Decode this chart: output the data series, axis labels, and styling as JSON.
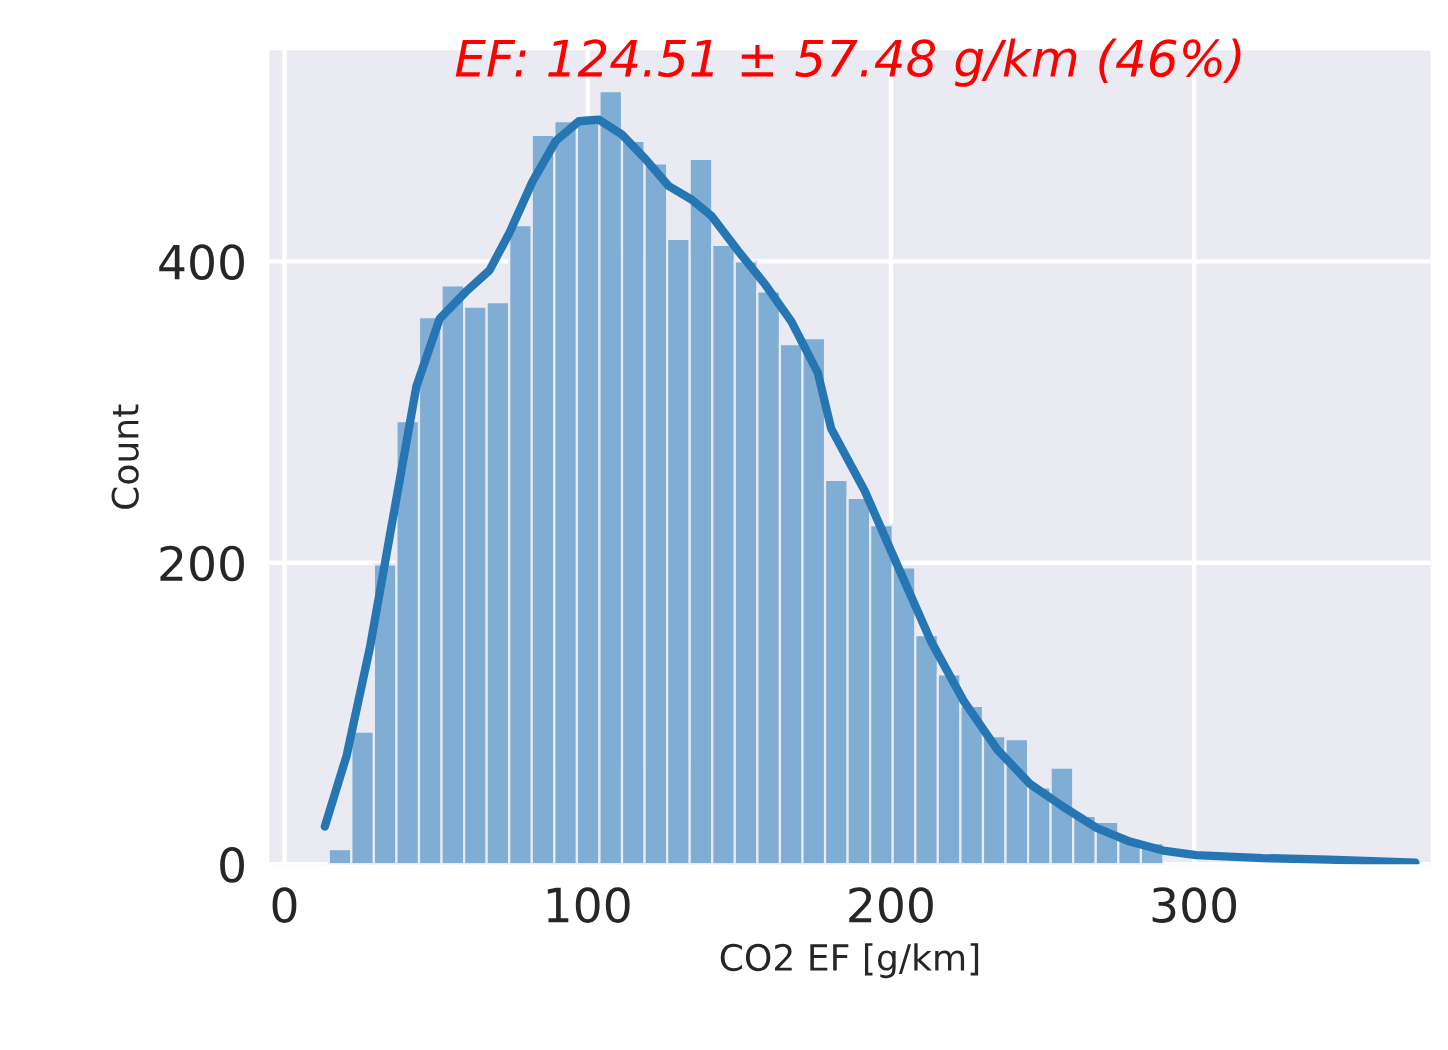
{
  "chart_data": {
    "type": "histogram",
    "title": "EF: 124.51 ± 57.48 g/km (46%)",
    "xlabel": "CO2 EF [g/km]",
    "ylabel": "Count",
    "bins": [
      14.6,
      22.04,
      29.48,
      36.92,
      44.36,
      51.8,
      59.24,
      66.68,
      74.12,
      81.56,
      89.0,
      96.44,
      103.88,
      111.32,
      118.76,
      126.2,
      133.64,
      141.08,
      148.52,
      155.96,
      163.4,
      170.84,
      178.28,
      185.72,
      193.16,
      200.6,
      208.04,
      215.48,
      222.92,
      230.36,
      237.8,
      245.24,
      252.68,
      260.12,
      267.56,
      275.0,
      282.44,
      289.88,
      297.32,
      304.76,
      312.2,
      319.64,
      327.08,
      334.52,
      341.96
    ],
    "values": [
      10,
      88,
      199,
      294,
      363,
      384,
      370,
      373,
      424,
      484,
      493,
      496,
      513,
      480,
      465,
      415,
      468,
      411,
      400,
      380,
      345,
      349,
      255,
      243,
      225,
      197,
      152,
      126,
      105,
      85,
      83,
      51,
      64,
      32,
      28,
      17,
      14,
      null,
      null,
      null,
      null,
      null,
      null,
      null
    ],
    "color": "#7fadd3",
    "series": [
      {
        "type": "line",
        "color": "#2676b4",
        "x": [
          13.3,
          20.5,
          28.2,
          35.8,
          43.5,
          51.2,
          59.9,
          67.6,
          74.2,
          81.8,
          89.5,
          97.1,
          103.7,
          111.4,
          119.0,
          126.7,
          134.3,
          140.9,
          149.6,
          158.4,
          167.2,
          175.9,
          180.3,
          191.3,
          202.2,
          213.2,
          224.1,
          235.1,
          246.0,
          256.9,
          267.9,
          278.8,
          289.8,
          300.7,
          322.6,
          344.5,
          373
        ],
        "values": [
          25,
          72,
          144,
          230,
          317,
          362,
          380,
          394,
          419,
          453,
          480,
          493,
          494,
          484,
          468,
          450,
          441,
          430,
          407,
          385,
          360,
          326,
          289,
          248,
          198,
          148,
          108,
          76,
          53,
          38,
          24,
          15,
          9,
          6,
          4,
          3,
          1
        ]
      }
    ],
    "xlim": [
      -5,
      378
    ],
    "ylim": [
      0,
      540
    ],
    "xticks": [
      0,
      100,
      200,
      300
    ],
    "yticks": [
      0,
      200,
      400
    ],
    "grid": true
  }
}
